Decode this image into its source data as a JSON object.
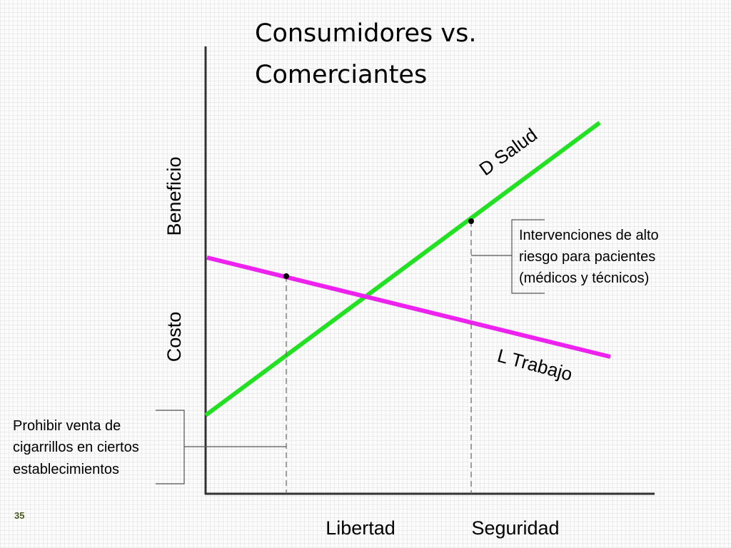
{
  "title": {
    "lines": [
      "Consumidores vs.",
      "Comerciantes"
    ]
  },
  "y_axis": {
    "low": "Costo",
    "arrow": "",
    "high": "Beneficio"
  },
  "x_axis": {
    "low": "Libertad",
    "arrow": "",
    "high": "Seguridad"
  },
  "curves": {
    "demand": "D Salud",
    "supply": "L Trabajo"
  },
  "annotations": {
    "right": [
      "Intervenciones de alto",
      "riesgo para pacientes",
      "(médicos y  técnicos)"
    ],
    "left": [
      "Prohibir venta de",
      "cigarrillos en ciertos",
      "establecimientos"
    ]
  },
  "page_number": "35"
}
